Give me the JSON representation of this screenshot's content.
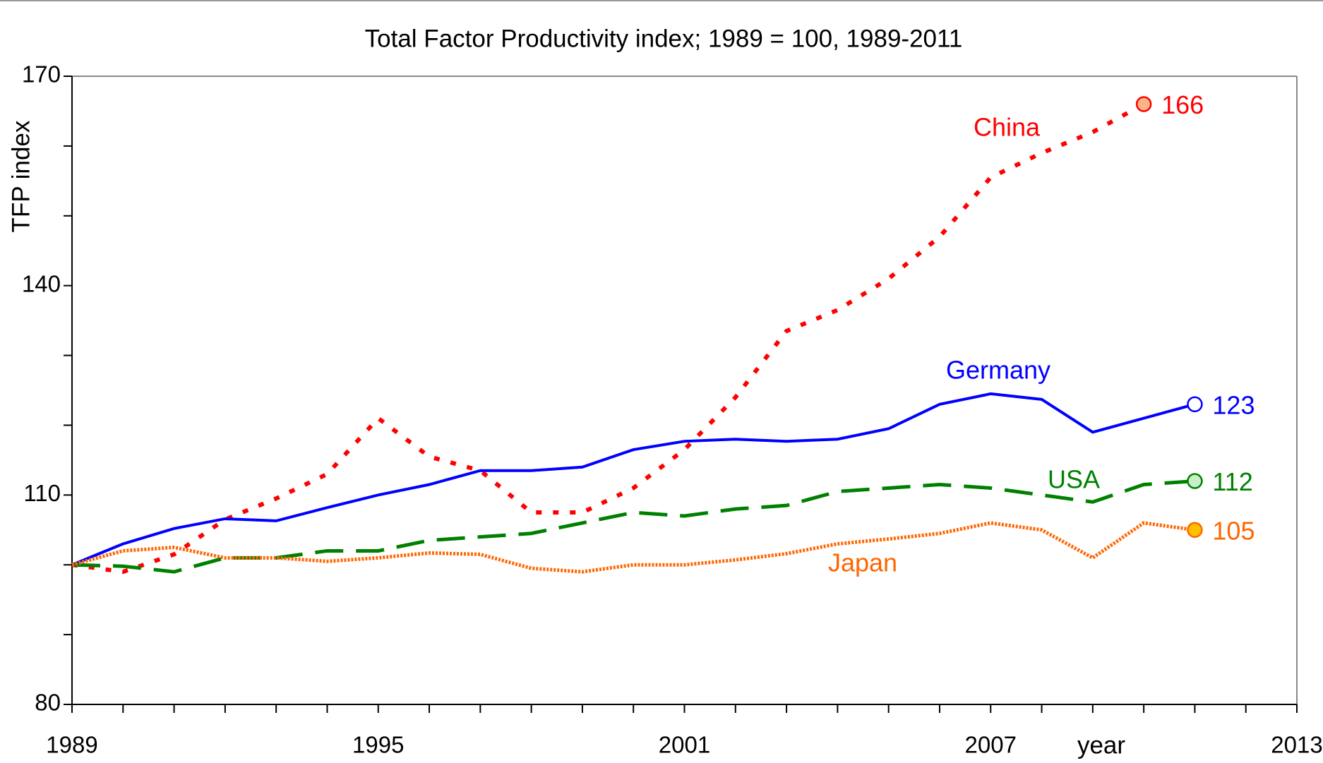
{
  "chart_data": {
    "type": "line",
    "title": "Total Factor Productivity index; 1989 = 100, 1989-2011",
    "y_label": "TFP index",
    "x_label": "year",
    "x": [
      1989,
      1990,
      1991,
      1992,
      1993,
      1994,
      1995,
      1996,
      1997,
      1998,
      1999,
      2000,
      2001,
      2002,
      2003,
      2004,
      2005,
      2006,
      2007,
      2008,
      2009,
      2010,
      2011
    ],
    "xlim": [
      1989,
      2013
    ],
    "xticks": [
      1989,
      1995,
      2001,
      2007,
      2013
    ],
    "ylim": [
      80,
      170
    ],
    "yticks": [
      80,
      110,
      140,
      170
    ],
    "series": [
      {
        "name": "China",
        "color": "#ff0000",
        "values": [
          100,
          99,
          101.5,
          106.5,
          109.5,
          113,
          121,
          115.5,
          113.5,
          107.5,
          107.5,
          111,
          116.5,
          124,
          133.5,
          136.5,
          141,
          147,
          155.5,
          159,
          162,
          166,
          null
        ]
      },
      {
        "name": "Germany",
        "color": "#0000ff",
        "values": [
          100,
          103,
          105.2,
          106.6,
          106.3,
          108.2,
          110,
          111.5,
          113.5,
          113.5,
          114,
          116.5,
          117.7,
          118,
          117.7,
          118,
          119.5,
          123,
          124.5,
          123.7,
          119,
          121,
          123
        ]
      },
      {
        "name": "USA",
        "color": "#008000",
        "values": [
          100,
          99.8,
          99,
          101,
          101,
          102,
          102,
          103.5,
          104,
          104.5,
          106,
          107.5,
          107,
          108,
          108.5,
          110.5,
          111,
          111.5,
          111,
          110,
          109,
          111.5,
          112
        ]
      },
      {
        "name": "Japan",
        "color": "#ff6600",
        "values": [
          100,
          102,
          102.5,
          101,
          101,
          100.5,
          101,
          101.7,
          101.5,
          99.5,
          99,
          100,
          100,
          100.7,
          101.6,
          103,
          103.7,
          104.5,
          106,
          105,
          101,
          106,
          105
        ]
      }
    ]
  }
}
